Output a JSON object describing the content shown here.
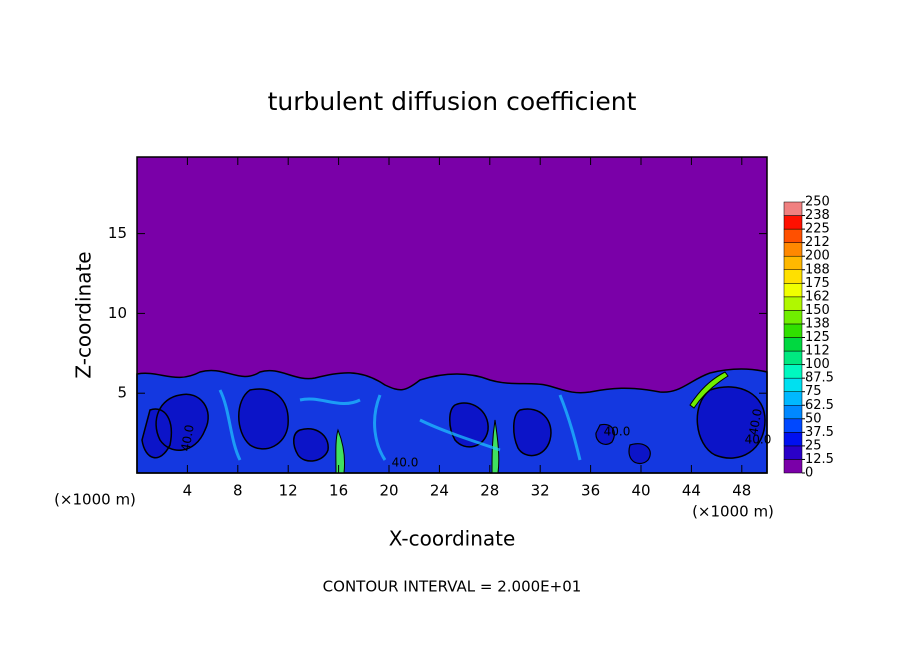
{
  "chart_data": {
    "type": "contour",
    "title": "turbulent diffusion coefficient",
    "x_label": "X-coordinate",
    "y_label": "Z-coordinate",
    "x_unit_label_left": "(×1000 m)",
    "x_unit_label_right": "(×1000 m)",
    "footer": "CONTOUR INTERVAL = 2.000E+01",
    "contour_labels": [
      "40.0",
      "40.0",
      "40.0",
      "40.0",
      "40.0"
    ],
    "xlim": [
      0,
      50
    ],
    "xticks": [
      4,
      8,
      12,
      16,
      20,
      24,
      28,
      32,
      36,
      40,
      44,
      48
    ],
    "ylim": [
      0,
      19.8
    ],
    "yticks": [
      5,
      10,
      15
    ],
    "colorbar": {
      "ticks": [
        0,
        12.5,
        25,
        37.5,
        50,
        62.5,
        75,
        87.5,
        100,
        {
          "value": 112.5,
          "label": "112"
        },
        125,
        {
          "value": 137.5,
          "label": "138"
        },
        150,
        {
          "value": 162.5,
          "label": "162"
        },
        175,
        {
          "value": 187.5,
          "label": "188"
        },
        200,
        {
          "value": 212.5,
          "label": "212"
        },
        225,
        {
          "value": 237.5,
          "label": "238"
        },
        250
      ],
      "colors": [
        "#7a00a8",
        "#2a00c8",
        "#0010f0",
        "#0048ff",
        "#0088ff",
        "#00b8ff",
        "#00e0f0",
        "#00f8c0",
        "#00e880",
        "#00d840",
        "#30e000",
        "#70ee00",
        "#b0f800",
        "#f0ff00",
        "#ffe000",
        "#ffb800",
        "#ff8800",
        "#ff5000",
        "#ff1000",
        "#f08080"
      ]
    }
  }
}
